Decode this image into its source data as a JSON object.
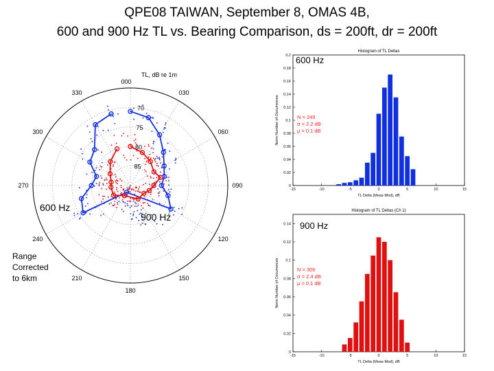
{
  "title_line1": "QPE08 TAIWAN, September 8, OMAS 4B,",
  "title_line2": "600 and 900 Hz TL vs. Bearing Comparison,  ds = 200ft, dr = 200ft",
  "range_note": [
    "Range",
    "Corrected",
    "to 6km"
  ],
  "colors": {
    "blue": "#1030e0",
    "red": "#e01010",
    "label_red": "#ff2020"
  },
  "chart_data": [
    {
      "type": "polar",
      "title": "TL, dB re 1m",
      "bearing_labels": [
        "000",
        "030",
        "060",
        "090",
        "120",
        "150",
        "180",
        "210",
        "240",
        "270",
        "300",
        "330"
      ],
      "radial_labels": [
        "70",
        "75",
        "80",
        "85"
      ],
      "rlim": [
        90,
        65
      ],
      "series": [
        {
          "name": "600 Hz",
          "color": "#1030e0",
          "points": [
            {
              "bearing": 0,
              "tl": 71
            },
            {
              "bearing": 15,
              "tl": 72
            },
            {
              "bearing": 30,
              "tl": 75
            },
            {
              "bearing": 45,
              "tl": 78
            },
            {
              "bearing": 60,
              "tl": 80
            },
            {
              "bearing": 75,
              "tl": 81
            },
            {
              "bearing": 90,
              "tl": 82
            },
            {
              "bearing": 105,
              "tl": 80
            },
            {
              "bearing": 120,
              "tl": 78
            },
            {
              "bearing": 210,
              "tl": 88
            },
            {
              "bearing": 240,
              "tl": 76
            },
            {
              "bearing": 255,
              "tl": 77
            },
            {
              "bearing": 270,
              "tl": 80
            },
            {
              "bearing": 285,
              "tl": 81
            },
            {
              "bearing": 300,
              "tl": 78
            },
            {
              "bearing": 315,
              "tl": 77
            },
            {
              "bearing": 330,
              "tl": 72
            },
            {
              "bearing": 345,
              "tl": 71
            }
          ]
        },
        {
          "name": "900 Hz",
          "color": "#e01010",
          "points": [
            {
              "bearing": 0,
              "tl": 80
            },
            {
              "bearing": 20,
              "tl": 81
            },
            {
              "bearing": 40,
              "tl": 82
            },
            {
              "bearing": 60,
              "tl": 83
            },
            {
              "bearing": 75,
              "tl": 82
            },
            {
              "bearing": 90,
              "tl": 84
            },
            {
              "bearing": 105,
              "tl": 85
            },
            {
              "bearing": 120,
              "tl": 86
            },
            {
              "bearing": 150,
              "tl": 86
            },
            {
              "bearing": 210,
              "tl": 87
            },
            {
              "bearing": 240,
              "tl": 85
            },
            {
              "bearing": 265,
              "tl": 85
            },
            {
              "bearing": 280,
              "tl": 85
            },
            {
              "bearing": 300,
              "tl": 84
            },
            {
              "bearing": 320,
              "tl": 82
            },
            {
              "bearing": 340,
              "tl": 80
            }
          ]
        }
      ],
      "annotations": [
        "600 Hz",
        "900 Hz"
      ]
    },
    {
      "type": "bar",
      "title": "Histogram of TL Deltas",
      "label": "600 Hz",
      "xlabel": "TL Delta (Meas-Mod), dB",
      "ylabel": "Norm Number of Occurrences",
      "xlim": [
        -15,
        15
      ],
      "ylim": [
        0,
        0.2
      ],
      "xticks": [
        "-15",
        "-10",
        "-5",
        "0",
        "5",
        "10",
        "15"
      ],
      "yticks": [
        "0",
        "0.02",
        "0.04",
        "0.06",
        "0.08",
        "0.1",
        "0.12",
        "0.14",
        "0.16",
        "0.18",
        "0.2"
      ],
      "bin_width": 1,
      "bins": [
        -7,
        -6,
        -5,
        -4,
        -3,
        -2,
        -1,
        0,
        1,
        2,
        3,
        4,
        5,
        6
      ],
      "values": [
        0.002,
        0.004,
        0.005,
        0.008,
        0.012,
        0.035,
        0.05,
        0.11,
        0.15,
        0.17,
        0.135,
        0.075,
        0.045,
        0.025
      ],
      "stats": [
        "N = 249",
        "σ = 2.2 dB",
        "μ = 0.1 dB"
      ],
      "color": "#1030e0"
    },
    {
      "type": "bar",
      "title": "Histogram of TL Deltas (Ch 1)",
      "label": "900 Hz",
      "xlabel": "TL Delta (Meas-Mod), dB",
      "ylabel": "Norm Number of Occurrences",
      "xlim": [
        -15,
        15
      ],
      "ylim": [
        0,
        0.15
      ],
      "xticks": [
        "-15",
        "-10",
        "-5",
        "0",
        "5",
        "10",
        "15"
      ],
      "yticks": [
        "0",
        "0.02",
        "0.04",
        "0.06",
        "0.08",
        "0.1",
        "0.12",
        "0.14"
      ],
      "bin_width": 1,
      "bins": [
        -6,
        -5,
        -4,
        -3,
        -2,
        -1,
        0,
        1,
        2,
        3,
        4,
        5
      ],
      "values": [
        0.008,
        0.015,
        0.032,
        0.055,
        0.085,
        0.105,
        0.125,
        0.12,
        0.1,
        0.065,
        0.035,
        0.01
      ],
      "stats": [
        "N = 306",
        "σ = 2.4 dB",
        "μ = 0.1 dB"
      ],
      "color": "#e01010"
    }
  ]
}
